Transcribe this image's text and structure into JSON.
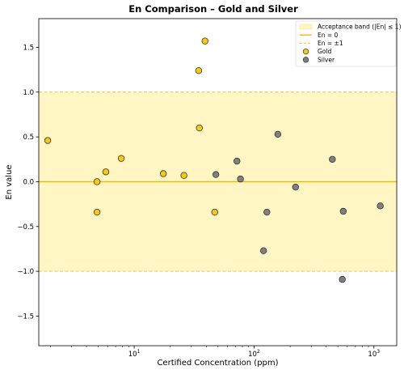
{
  "chart_data": {
    "type": "scatter",
    "title": "En Comparison – Gold and Silver",
    "xlabel": "Certified Concentration (ppm)",
    "ylabel": "En value",
    "xscale": "log",
    "xlim": [
      1.6,
      1550
    ],
    "ylim": [
      -1.83,
      1.82
    ],
    "yticks": [
      -1.5,
      -1.0,
      -0.5,
      0.0,
      0.5,
      1.0,
      1.5
    ],
    "ytick_labels": [
      "−1.5",
      "−1.0",
      "−0.5",
      "0.0",
      "0.5",
      "1.0",
      "1.5"
    ],
    "xticks": [
      10,
      100,
      1000
    ],
    "xtick_base": "10",
    "xtick_exponents": [
      "1",
      "2",
      "3"
    ],
    "grid": false,
    "legend_position": "top-right",
    "acceptance_band": {
      "min": -1,
      "max": 1,
      "label": "Acceptance band (|En| ≤ 1)",
      "color": "#fff6c4"
    },
    "reference_lines": [
      {
        "y": 0,
        "label": "En = 0",
        "style": "solid",
        "color": "#e8b90c"
      },
      {
        "y": 1,
        "label": "En = ±1",
        "style": "dashed",
        "color": "#f2c14e"
      },
      {
        "y": -1,
        "label": "",
        "style": "dashed",
        "color": "#f2c14e"
      }
    ],
    "series": [
      {
        "name": "Gold",
        "color": "#f6c90e",
        "points": [
          {
            "x": 1.9,
            "y": 0.46
          },
          {
            "x": 4.9,
            "y": 0.0
          },
          {
            "x": 4.9,
            "y": -0.34
          },
          {
            "x": 5.8,
            "y": 0.11
          },
          {
            "x": 7.8,
            "y": 0.26
          },
          {
            "x": 17.5,
            "y": 0.09
          },
          {
            "x": 26.0,
            "y": 0.07
          },
          {
            "x": 34.5,
            "y": 1.24
          },
          {
            "x": 35.0,
            "y": 0.6
          },
          {
            "x": 39.0,
            "y": 1.57
          },
          {
            "x": 47.0,
            "y": -0.34
          }
        ]
      },
      {
        "name": "Silver",
        "color": "#808080",
        "points": [
          {
            "x": 48.0,
            "y": 0.08
          },
          {
            "x": 72.0,
            "y": 0.23
          },
          {
            "x": 77.0,
            "y": 0.03
          },
          {
            "x": 120.0,
            "y": -0.77
          },
          {
            "x": 128.0,
            "y": -0.34
          },
          {
            "x": 158.0,
            "y": 0.53
          },
          {
            "x": 222.0,
            "y": -0.06
          },
          {
            "x": 450.0,
            "y": 0.25
          },
          {
            "x": 545.0,
            "y": -1.09
          },
          {
            "x": 555.0,
            "y": -0.33
          },
          {
            "x": 1130.0,
            "y": -0.27
          }
        ]
      }
    ]
  }
}
